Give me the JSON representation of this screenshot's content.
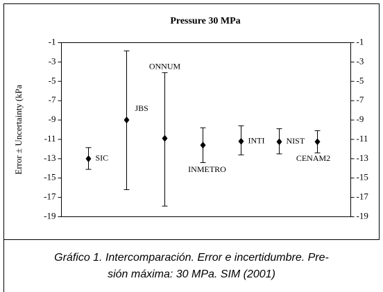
{
  "chart_data": {
    "type": "errorbar",
    "title": "Pressure 30 MPa",
    "ylabel": "Error ± Uncertainty (kPa",
    "categories": [
      "SIC",
      "JBS",
      "ONNUM",
      "INMETRO",
      "INTI",
      "NIST",
      "CENAM2"
    ],
    "values": [
      -13,
      -9,
      -10.9,
      -11.6,
      -11.2,
      -11.25,
      -11.25
    ],
    "upper": [
      -11.85,
      -1.85,
      -4.1,
      -9.8,
      -9.6,
      -9.9,
      -10.1
    ],
    "lower": [
      -14.1,
      -16.2,
      -17.9,
      -13.4,
      -12.6,
      -12.5,
      -12.4
    ],
    "ylim": [
      -19,
      -1
    ],
    "yticks": [
      -19,
      -17,
      -15,
      -13,
      -11,
      -9,
      -7,
      -5,
      -3,
      -1
    ],
    "caption": [
      "Gráfico 1. Intercomparación. Error e incertidumbre. Pre-",
      "sión máxima: 30 MPa. SIM (2001)"
    ]
  }
}
